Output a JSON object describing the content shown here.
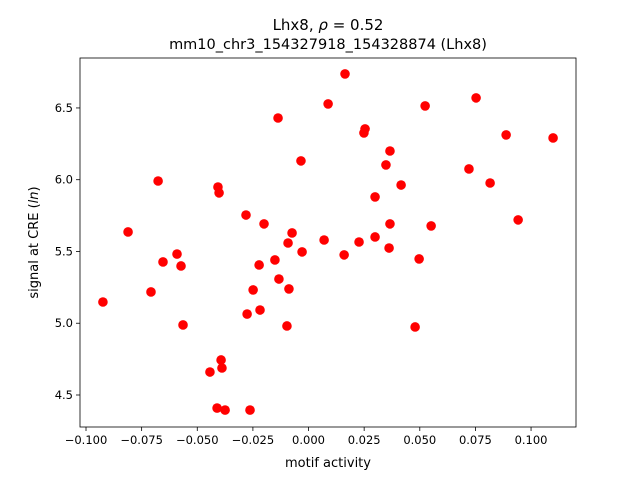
{
  "chart_data": {
    "type": "scatter",
    "title_line1_prefix": "Lhx8, ",
    "title_rho_symbol": "ρ",
    "title_rho_value": " = 0.52",
    "title_line2": "mm10_chr3_154327918_154328874 (Lhx8)",
    "xlabel": "motif activity",
    "ylabel_prefix": "signal at CRE (",
    "ylabel_italic": "ln",
    "ylabel_suffix": ")",
    "xlim": [
      -0.1027,
      0.1202
    ],
    "ylim": [
      4.277,
      6.848
    ],
    "xticks": [
      -0.1,
      -0.075,
      -0.05,
      -0.025,
      0.0,
      0.025,
      0.05,
      0.075,
      0.1
    ],
    "xtick_labels": [
      "−0.100",
      "−0.075",
      "−0.050",
      "−0.025",
      "0.000",
      "0.025",
      "0.050",
      "0.075",
      "0.100"
    ],
    "yticks": [
      4.5,
      5.0,
      5.5,
      6.0,
      6.5
    ],
    "ytick_labels": [
      "4.5",
      "5.0",
      "5.5",
      "6.0",
      "6.5"
    ],
    "grid": false,
    "marker_color": "#ff0000",
    "points": [
      [
        -0.0924,
        5.148
      ],
      [
        -0.0811,
        5.636
      ],
      [
        -0.0708,
        5.218
      ],
      [
        -0.0676,
        5.991
      ],
      [
        -0.0654,
        5.427
      ],
      [
        -0.0591,
        5.482
      ],
      [
        -0.0573,
        5.399
      ],
      [
        -0.0564,
        4.988
      ],
      [
        -0.0443,
        4.66
      ],
      [
        -0.0411,
        4.409
      ],
      [
        -0.0407,
        5.949
      ],
      [
        -0.0402,
        5.908
      ],
      [
        -0.0393,
        4.744
      ],
      [
        -0.0389,
        4.688
      ],
      [
        -0.0375,
        4.395
      ],
      [
        -0.0281,
        5.754
      ],
      [
        -0.0276,
        5.064
      ],
      [
        -0.0263,
        4.395
      ],
      [
        -0.0249,
        5.232
      ],
      [
        -0.0222,
        5.406
      ],
      [
        -0.0218,
        5.092
      ],
      [
        -0.02,
        5.692
      ],
      [
        -0.0151,
        5.441
      ],
      [
        -0.0137,
        6.43
      ],
      [
        -0.0133,
        5.308
      ],
      [
        -0.0097,
        4.981
      ],
      [
        -0.0092,
        5.559
      ],
      [
        -0.0088,
        5.239
      ],
      [
        -0.0074,
        5.629
      ],
      [
        -0.0034,
        6.131
      ],
      [
        -0.0029,
        5.497
      ],
      [
        0.007,
        5.58
      ],
      [
        0.0088,
        6.528
      ],
      [
        0.016,
        5.476
      ],
      [
        0.0164,
        6.737
      ],
      [
        0.0227,
        5.566
      ],
      [
        0.0249,
        6.326
      ],
      [
        0.0254,
        6.354
      ],
      [
        0.0299,
        5.88
      ],
      [
        0.0299,
        5.601
      ],
      [
        0.0348,
        6.103
      ],
      [
        0.0362,
        5.524
      ],
      [
        0.0366,
        6.2
      ],
      [
        0.0366,
        5.692
      ],
      [
        0.0416,
        5.963
      ],
      [
        0.0479,
        4.974
      ],
      [
        0.0497,
        5.448
      ],
      [
        0.0524,
        6.514
      ],
      [
        0.0551,
        5.678
      ],
      [
        0.0721,
        6.075
      ],
      [
        0.0753,
        6.57
      ],
      [
        0.0816,
        5.977
      ],
      [
        0.0888,
        6.312
      ],
      [
        0.0942,
        5.72
      ],
      [
        0.1099,
        6.291
      ]
    ]
  }
}
